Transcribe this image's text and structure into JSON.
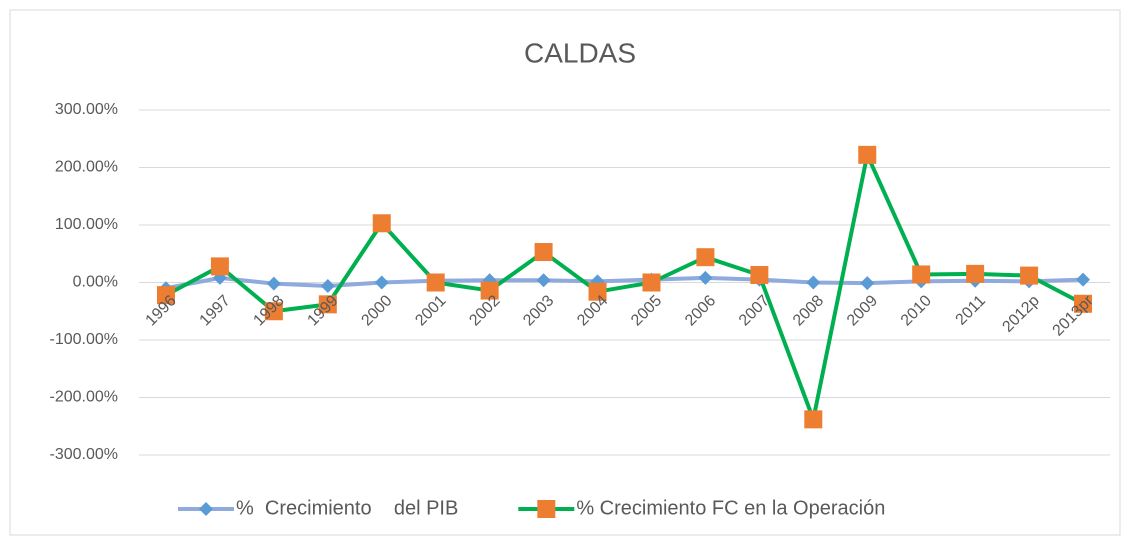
{
  "chart_data": {
    "type": "line",
    "title": "CALDAS",
    "categories": [
      "1996",
      "1997",
      "1998",
      "1999",
      "2000",
      "2001",
      "2002",
      "2003",
      "2004",
      "2005",
      "2006",
      "2007",
      "2008",
      "2009",
      "2010",
      "2011",
      "2012p",
      "2013pr"
    ],
    "series": [
      {
        "name": "%  Crecimiento    del PIB",
        "color": "#8faadc",
        "marker": "diamond",
        "marker_color": "#5b9bd5",
        "values": [
          -10,
          8,
          -2,
          -6,
          0,
          3,
          4,
          4,
          2,
          5,
          8,
          5,
          0,
          -1,
          2,
          3,
          2,
          5
        ]
      },
      {
        "name": "% Crecimiento FC en la Operación",
        "color": "#00b050",
        "marker": "square",
        "marker_color": "#ed7d31",
        "values": [
          -22,
          28,
          -50,
          -38,
          103,
          0,
          -14,
          53,
          -16,
          0,
          44,
          13,
          -238,
          222,
          14,
          15,
          12,
          -37
        ]
      }
    ],
    "ylim": [
      -300,
      300
    ],
    "yticks": [
      {
        "value": -300,
        "label": "-300.00%"
      },
      {
        "value": -200,
        "label": "-200.00%"
      },
      {
        "value": -100,
        "label": "-100.00%"
      },
      {
        "value": 0,
        "label": "0.00%"
      },
      {
        "value": 100,
        "label": "100.00%"
      },
      {
        "value": 200,
        "label": "200.00%"
      },
      {
        "value": 300,
        "label": "300.00%"
      }
    ],
    "grid": true,
    "legend": "bottom"
  }
}
